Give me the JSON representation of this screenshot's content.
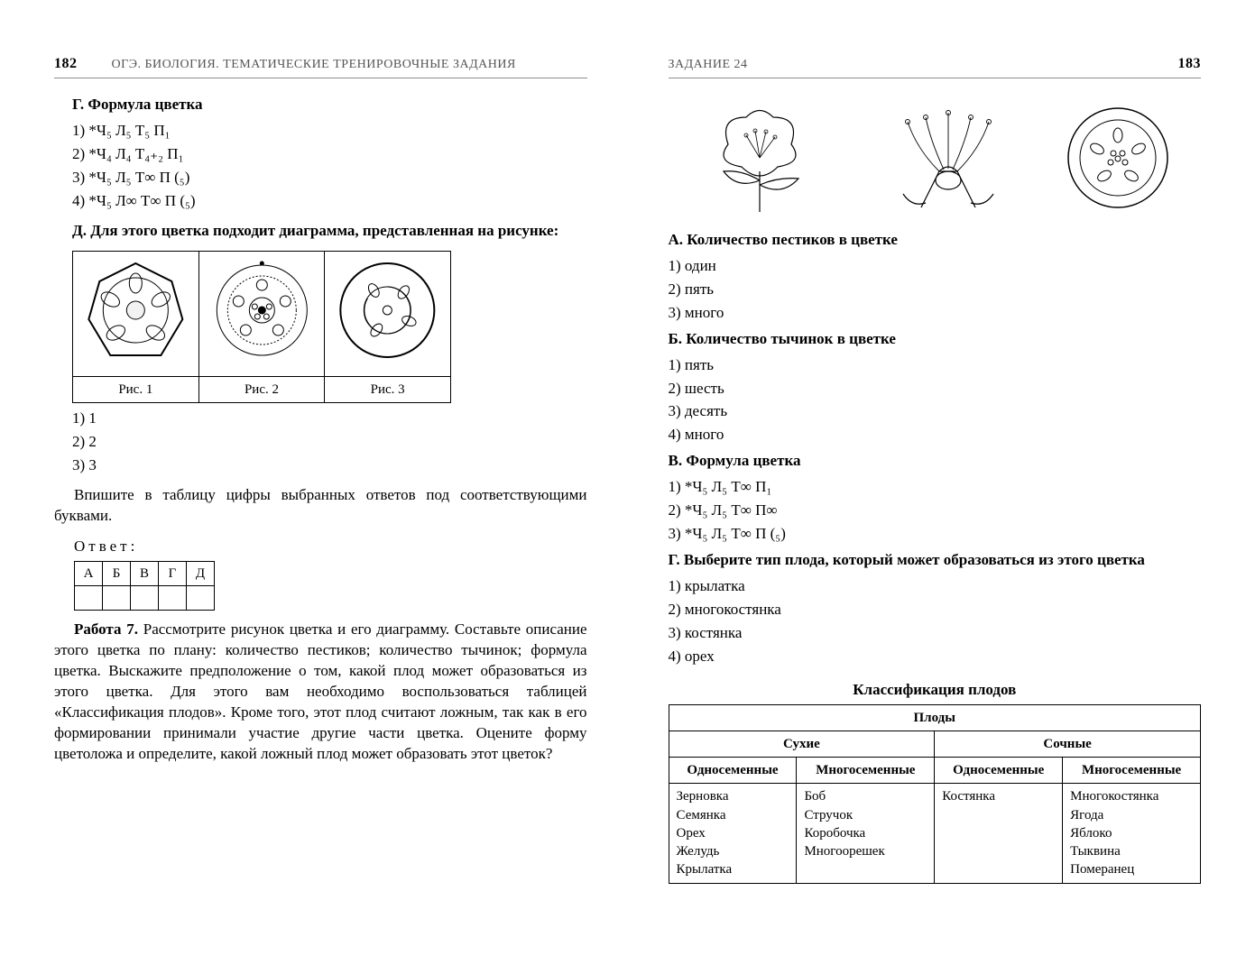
{
  "left": {
    "page_number": "182",
    "running_title": "ОГЭ. БИОЛОГИЯ. ТЕМАТИЧЕСКИЕ ТРЕНИРОВОЧНЫЕ ЗАДАНИЯ",
    "sec_g": "Г. Формула цветка",
    "g_opts": {
      "1": "1) *Ч₅ Л₅ Т₅ П₁",
      "2": "2) *Ч₄ Л₄ Т₄₊₂ П₁",
      "3": "3) *Ч₅ Л₅ Т∞ П (₅)",
      "4": "4) *Ч₅ Л∞ Т∞ П (₅)"
    },
    "sec_d": "Д. Для этого цветка подходит диаграмма, представ­ленная на рисунке:",
    "fig_captions": {
      "1": "Рис. 1",
      "2": "Рис. 2",
      "3": "Рис. 3"
    },
    "d_opts": {
      "1": "1) 1",
      "2": "2) 2",
      "3": "3) 3"
    },
    "instruction": "Впишите в таблицу цифры выбранных ответов под со­ответствующими буквами.",
    "answer_label": "Ответ:",
    "answer_headers": [
      "А",
      "Б",
      "В",
      "Г",
      "Д"
    ],
    "task7_label": "Работа 7.",
    "task7_text": " Рассмотрите рисунок цветка и его диаграмму. Составьте описание этого цветка по плану: количество пес­тиков; количество тычинок; формула цветка. Выскажи­те предположение о том, какой плод может образовать­ся из этого цветка. Для этого вам необходимо восполь­зоваться таблицей «Классификация плодов». Кроме того, этот плод считают ложным, так как в его формировании принимали участие другие части цветка. Оцените фор­му цветоложа и определите, какой ложный плод может образовать этот цветок?"
  },
  "right": {
    "page_number": "183",
    "running_title": "ЗАДАНИЕ 24",
    "sec_a": "А. Количество пестиков в цветке",
    "a_opts": {
      "1": "1) один",
      "2": "2) пять",
      "3": "3) много"
    },
    "sec_b": "Б. Количество тычинок в цветке",
    "b_opts": {
      "1": "1) пять",
      "2": "2) шесть",
      "3": "3) десять",
      "4": "4) много"
    },
    "sec_c": "В. Формула цветка",
    "c_opts": {
      "1": "1) *Ч₅ Л₅ Т∞ П₁",
      "2": "2) *Ч₅ Л₅ Т∞ П∞",
      "3": "3) *Ч₅ Л₅ Т∞ П (₅)"
    },
    "sec_g2": "Г. Выберите тип плода, который может образоваться из этого цветка",
    "g2_opts": {
      "1": "1) крылатка",
      "2": "2) многокостянка",
      "3": "3) костянка",
      "4": "4) орех"
    },
    "class_title": "Классификация плодов",
    "table": {
      "top": "Плоды",
      "dry": "Сухие",
      "juicy": "Сочные",
      "one": "Односеменные",
      "many_hdr": "Многосе­менные",
      "many": "Многосеменные",
      "dry_one": "Зерновка\nСемянка\nОрех\nЖелудь\nКрылатка",
      "dry_many": "Боб\nСтручок\nКоробочка\nМногооре­шек",
      "juicy_one": "Костянка",
      "juicy_many": "Многокостянка\nЯгода\nЯблоко\nТыквина\nПомеранец"
    }
  },
  "style": {
    "text_color": "#000000",
    "rule_color": "#8c8c8c",
    "diagram_stroke": "#000000",
    "diagram_fill": "#ffffff"
  }
}
